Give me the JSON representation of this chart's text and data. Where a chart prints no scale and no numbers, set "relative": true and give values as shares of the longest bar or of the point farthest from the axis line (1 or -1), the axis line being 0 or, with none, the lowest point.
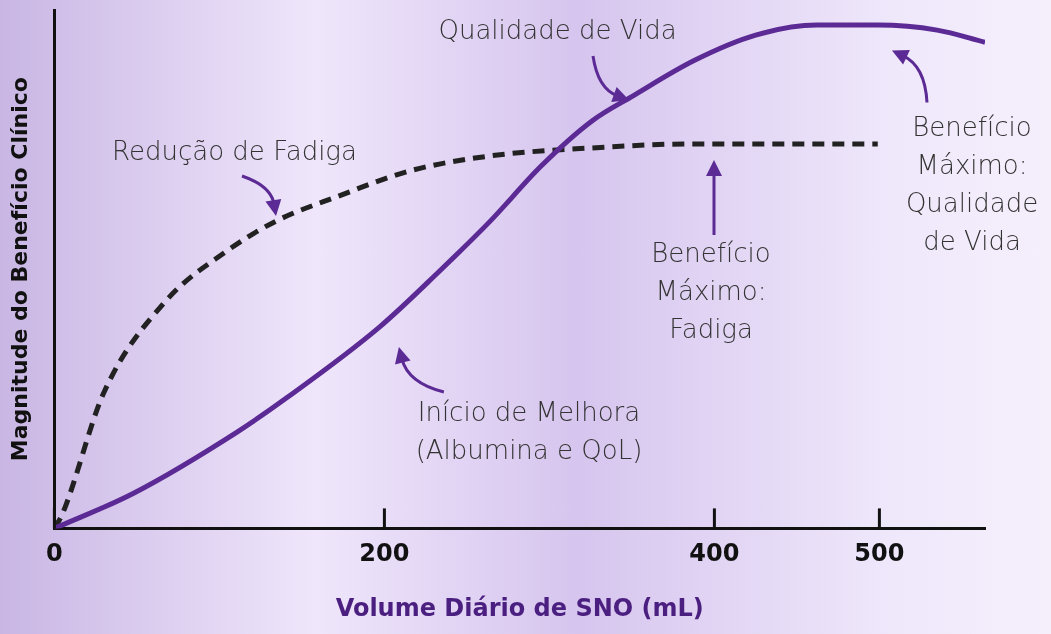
{
  "chart_data": {
    "type": "line",
    "relative": true,
    "xlabel": "Volume Diário de SNO (mL)",
    "ylabel": "Magnitude do Benefício Clínico",
    "xlim": [
      0,
      564
    ],
    "xticks": [
      0,
      200,
      400,
      500
    ],
    "grid": false,
    "legend": false,
    "marker": "none",
    "series": [
      {
        "color": "#5b2a94",
        "line_style": "solid",
        "x": [
          0,
          48,
          110,
          141,
          197,
          233,
          264,
          295,
          326,
          351,
          388,
          425,
          462,
          499,
          535,
          564
        ],
        "values": [
          0,
          0.07,
          0.19,
          0.26,
          0.4,
          0.51,
          0.61,
          0.72,
          0.81,
          0.86,
          0.93,
          0.98,
          1,
          1,
          0.99,
          0.966
        ]
      },
      {
        "color": "#222222",
        "line_style": "dashed",
        "x": [
          0,
          5,
          30,
          67,
          104,
          134,
          172,
          215,
          264,
          326,
          388,
          499
        ],
        "values": [
          0,
          0.03,
          0.27,
          0.45,
          0.55,
          0.61,
          0.66,
          0.71,
          0.74,
          0.756,
          0.764,
          0.764
        ]
      }
    ],
    "annotations": [
      {
        "text": "Qualidade de Vida",
        "x": 351,
        "y": 0.86
      },
      {
        "text": "Redução de Fadiga",
        "x": 134,
        "y": 0.61
      },
      "Benefício Máximo: Fadiga",
      "Benefício Máximo: Qualidade de Vida",
      "Início de Melhora (Albumina e QoL)"
    ]
  }
}
